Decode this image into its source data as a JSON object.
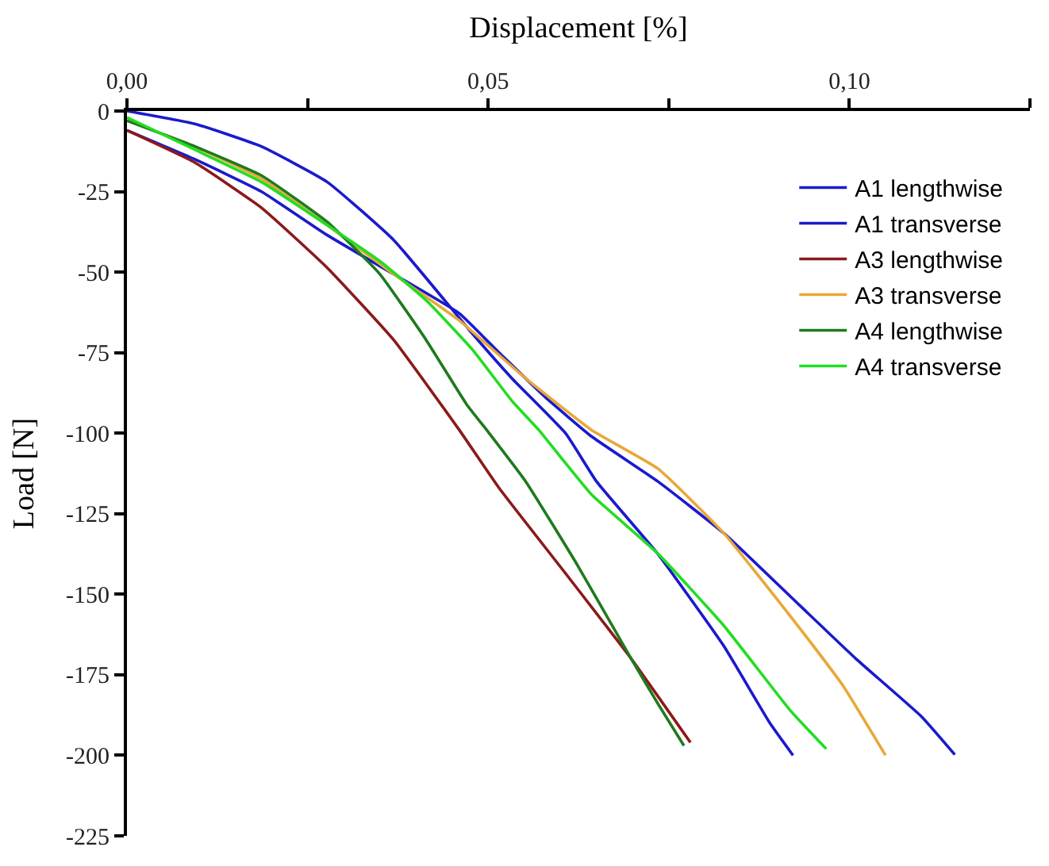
{
  "chart_data": {
    "type": "line",
    "xlabel": "Displacement [%]",
    "ylabel": "Load [N]",
    "xlim": [
      0,
      0.125
    ],
    "ylim": [
      -225,
      0
    ],
    "xticks": [
      {
        "value": 0,
        "label": "0,00"
      },
      {
        "value": 0.025,
        "label": null
      },
      {
        "value": 0.05,
        "label": "0,05"
      },
      {
        "value": 0.075,
        "label": null
      },
      {
        "value": 0.1,
        "label": "0,10"
      },
      {
        "value": 0.125,
        "label": null
      }
    ],
    "yticks": [
      0,
      -25,
      -50,
      -75,
      -100,
      -125,
      -150,
      -175,
      -200,
      -225
    ],
    "legend": "top right",
    "marker": "none",
    "line_style": "solid",
    "series": [
      {
        "name": "A1 lengthwise",
        "color": "#1a1acc",
        "x": [
          0,
          0.0094,
          0.0186,
          0.0277,
          0.0369,
          0.0474,
          0.0533,
          0.0607,
          0.065,
          0.0735,
          0.0826,
          0.089,
          0.0922
        ],
        "values": [
          0,
          -4,
          -11,
          -22,
          -40,
          -68,
          -83,
          -100,
          -115,
          -137.5,
          -166,
          -190,
          -200
        ]
      },
      {
        "name": "A1 transverse",
        "color": "#1a1acc",
        "x": [
          0,
          0.0094,
          0.0186,
          0.0277,
          0.0369,
          0.046,
          0.0515,
          0.058,
          0.0643,
          0.0735,
          0.0826,
          0.0918,
          0.1009,
          0.11,
          0.1146
        ],
        "values": [
          -6,
          -15,
          -25,
          -38.5,
          -50.6,
          -62.8,
          -75,
          -89,
          -101,
          -115,
          -131,
          -150.6,
          -170,
          -188,
          -199.8
        ]
      },
      {
        "name": "A3 lengthwise",
        "color": "#8b1a1a",
        "x": [
          0,
          0.0094,
          0.0186,
          0.0277,
          0.0369,
          0.046,
          0.0515,
          0.0607,
          0.0698,
          0.078
        ],
        "values": [
          -6,
          -16,
          -30,
          -48.6,
          -71,
          -99,
          -117,
          -143.5,
          -170,
          -196
        ]
      },
      {
        "name": "A3 transverse",
        "color": "#e8a838",
        "x": [
          0,
          0.0094,
          0.0186,
          0.0277,
          0.0369,
          0.046,
          0.0552,
          0.0643,
          0.0735,
          0.0826,
          0.0918,
          0.099,
          0.105
        ],
        "values": [
          -3,
          -11,
          -21,
          -35.4,
          -50.6,
          -65,
          -83,
          -99,
          -111,
          -131,
          -156.7,
          -178,
          -200
        ]
      },
      {
        "name": "A4 lengthwise",
        "color": "#1e7a1e",
        "x": [
          0,
          0.0094,
          0.0186,
          0.0277,
          0.035,
          0.0414,
          0.047,
          0.05,
          0.0552,
          0.0625,
          0.0698,
          0.0735,
          0.0771
        ],
        "values": [
          -3,
          -11,
          -20,
          -34.4,
          -50.6,
          -71,
          -91,
          -99.6,
          -115,
          -141.5,
          -170,
          -184,
          -197
        ]
      },
      {
        "name": "A4 transverse",
        "color": "#22dd22",
        "x": [
          0,
          0.0094,
          0.0186,
          0.0277,
          0.035,
          0.0414,
          0.0478,
          0.0533,
          0.057,
          0.0643,
          0.0735,
          0.0826,
          0.0918,
          0.0968
        ],
        "values": [
          -2,
          -12,
          -22,
          -35.4,
          -46.6,
          -58.7,
          -74,
          -90,
          -99,
          -119,
          -137.4,
          -159.7,
          -186,
          -198
        ]
      }
    ]
  }
}
